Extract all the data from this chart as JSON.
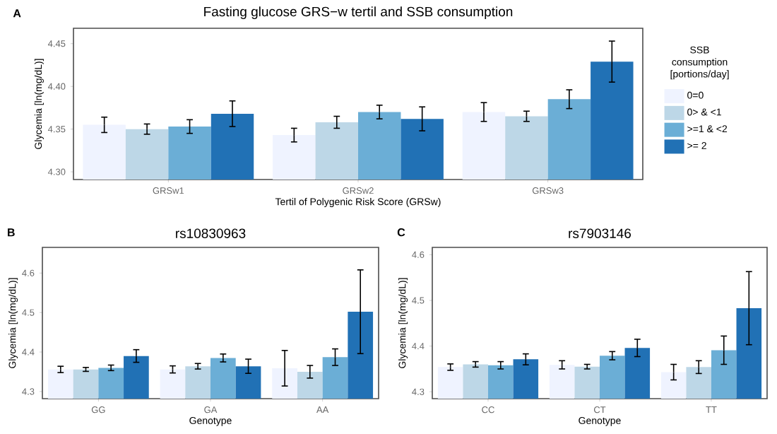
{
  "chart_data": [
    {
      "type": "bar",
      "title": "Fasting glucose GRS−w tertil and SSB consumption",
      "xlabel": "Tertil of Polygenic Risk Score (GRSw)",
      "ylabel": "Glycemia [ln(mg/dL)]",
      "legend_title": "SSB consumption [portions/day]",
      "annotations": [
        "A"
      ],
      "categories": [
        "GRSw1",
        "GRSw2",
        "GRSw3"
      ],
      "series": [
        {
          "name": "0=0",
          "color": "#eff3ff",
          "values": [
            4.355,
            4.343,
            4.37
          ],
          "errors": [
            0.009,
            0.008,
            0.011
          ]
        },
        {
          "name": "0> & <1",
          "color": "#bdd7e7",
          "values": [
            4.35,
            4.358,
            4.365
          ],
          "errors": [
            0.006,
            0.007,
            0.006
          ]
        },
        {
          "name": ">=1 & <2",
          "color": "#6baed6",
          "values": [
            4.353,
            4.37,
            4.385
          ],
          "errors": [
            0.008,
            0.008,
            0.011
          ]
        },
        {
          "name": ">= 2",
          "color": "#2171b5",
          "values": [
            4.368,
            4.362,
            4.429
          ],
          "errors": [
            0.015,
            0.014,
            0.024
          ]
        }
      ],
      "ylim": [
        4.291,
        4.468
      ],
      "yticks": [
        {
          "value": 4.3,
          "label": "4.30"
        },
        {
          "value": 4.35,
          "label": "4.35"
        },
        {
          "value": 4.4,
          "label": "4.40"
        },
        {
          "value": 4.45,
          "label": "4.45"
        }
      ],
      "grid": false,
      "legend": "right"
    },
    {
      "type": "bar",
      "title": "rs10830963",
      "xlabel": "Genotype",
      "ylabel": "Glycemia [ln(mg/dL)]",
      "annotations": [
        "B"
      ],
      "categories": [
        "GG",
        "GA",
        "AA"
      ],
      "series": [
        {
          "color": "#eff3ff",
          "values": [
            4.356,
            4.356,
            4.359
          ],
          "errors": [
            0.008,
            0.009,
            0.045
          ]
        },
        {
          "color": "#bdd7e7",
          "values": [
            4.356,
            4.364,
            4.35
          ],
          "errors": [
            0.005,
            0.007,
            0.016
          ]
        },
        {
          "color": "#6baed6",
          "values": [
            4.36,
            4.385,
            4.387
          ],
          "errors": [
            0.007,
            0.01,
            0.021
          ]
        },
        {
          "color": "#2171b5",
          "values": [
            4.39,
            4.364,
            4.502
          ],
          "errors": [
            0.016,
            0.018,
            0.106
          ]
        }
      ],
      "ylim": [
        4.282,
        4.665
      ],
      "yticks": [
        4.3,
        4.4,
        4.5,
        4.6
      ],
      "grid": false,
      "legend": false
    },
    {
      "type": "bar",
      "title": "rs7903146",
      "xlabel": "Genotype",
      "ylabel": "Glycemia [ln(mg/dL)]",
      "annotations": [
        "C"
      ],
      "categories": [
        "CC",
        "CT",
        "TT"
      ],
      "series": [
        {
          "color": "#eff3ff",
          "values": [
            4.354,
            4.359,
            4.343
          ],
          "errors": [
            0.007,
            0.009,
            0.017
          ]
        },
        {
          "color": "#bdd7e7",
          "values": [
            4.36,
            4.355,
            4.354
          ],
          "errors": [
            0.006,
            0.005,
            0.014
          ]
        },
        {
          "color": "#6baed6",
          "values": [
            4.358,
            4.379,
            4.391
          ],
          "errors": [
            0.008,
            0.009,
            0.031
          ]
        },
        {
          "color": "#2171b5",
          "values": [
            4.371,
            4.396,
            4.483
          ],
          "errors": [
            0.012,
            0.019,
            0.08
          ]
        }
      ],
      "ylim": [
        4.285,
        4.616
      ],
      "yticks": [
        4.3,
        4.4,
        4.5,
        4.6
      ],
      "grid": false,
      "legend": false
    }
  ]
}
